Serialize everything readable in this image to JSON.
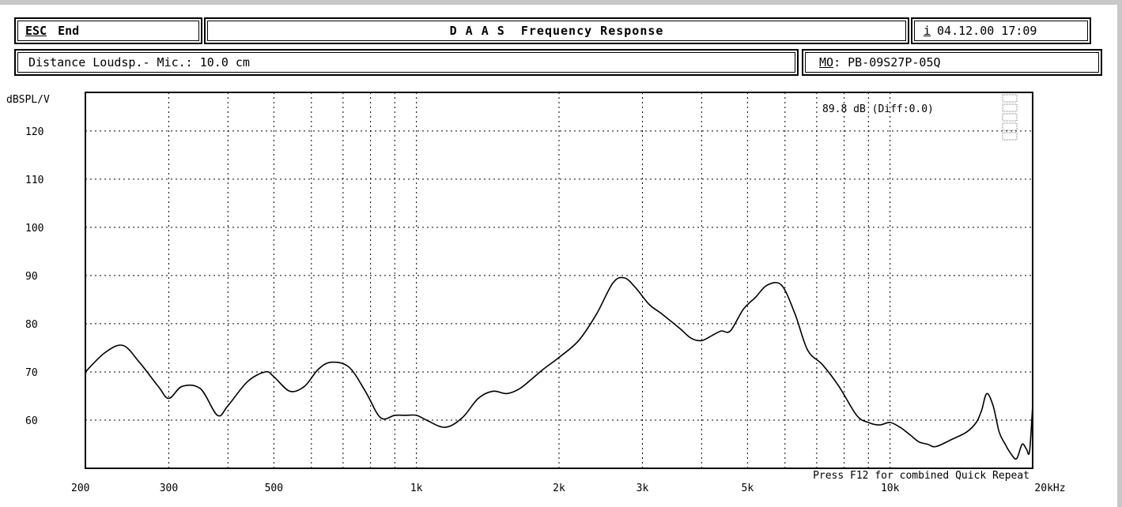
{
  "header": {
    "esc_key": "ESC",
    "esc_label": "End",
    "title": "D A A S  Frequency Response",
    "info_key": "i",
    "datetime": "04.12.00 17:09"
  },
  "subheader": {
    "distance": "Distance Loudsp.- Mic.: 10.0 cm",
    "model_key": "MO",
    "model_value": ": PB-09S27P-05Q"
  },
  "chart_data": {
    "type": "line",
    "ylabel": "dBSPL/V",
    "xunit": "kHz",
    "xscale": "log",
    "xlim": [
      200,
      20000
    ],
    "ylim": [
      50,
      128
    ],
    "grid": true,
    "y_ticks": [
      60,
      70,
      80,
      90,
      100,
      110,
      120
    ],
    "x_tick_labels": [
      {
        "f": 200,
        "label": "200"
      },
      {
        "f": 300,
        "label": "300"
      },
      {
        "f": 500,
        "label": "500"
      },
      {
        "f": 1000,
        "label": "1k"
      },
      {
        "f": 2000,
        "label": "2k"
      },
      {
        "f": 3000,
        "label": "3k"
      },
      {
        "f": 5000,
        "label": "5k"
      },
      {
        "f": 10000,
        "label": "10k"
      },
      {
        "f": 20000,
        "label": "20kHz"
      }
    ],
    "readout": "89.8 dB (Diff:0.0)",
    "annotation": "Press F12 for combined Quick Repeat",
    "x": [
      200,
      220,
      240,
      260,
      285,
      300,
      320,
      350,
      380,
      400,
      440,
      480,
      500,
      540,
      580,
      620,
      660,
      720,
      780,
      840,
      900,
      950,
      1000,
      1050,
      1150,
      1250,
      1350,
      1450,
      1550,
      1650,
      1750,
      1850,
      2000,
      2200,
      2400,
      2600,
      2750,
      2900,
      3100,
      3300,
      3600,
      3800,
      4000,
      4200,
      4400,
      4600,
      4900,
      5200,
      5500,
      5900,
      6300,
      6700,
      7200,
      7800,
      8500,
      9000,
      9500,
      10000,
      10500,
      11000,
      11500,
      12000,
      12500,
      13500,
      14500,
      15200,
      15600,
      16000,
      16500,
      17000,
      17500,
      18000,
      18500,
      19000,
      19400,
      19700,
      20000
    ],
    "y": [
      70,
      74,
      75.5,
      72,
      67,
      64.5,
      67,
      66.5,
      61,
      63,
      68,
      70,
      69,
      66,
      67,
      70.5,
      72,
      71,
      66,
      60.5,
      61,
      61,
      61,
      60,
      58.5,
      60.5,
      64.5,
      66,
      65.5,
      66.5,
      68.5,
      70.5,
      73,
      76.5,
      82,
      88.5,
      89.5,
      87.5,
      84,
      82,
      79,
      77,
      76.5,
      77.5,
      78.5,
      78.5,
      83,
      85.5,
      88,
      88,
      82,
      74.5,
      71.5,
      67,
      61,
      59.5,
      59,
      59.5,
      58.5,
      57,
      55.5,
      55,
      54.5,
      56,
      57.5,
      59.5,
      62,
      65.5,
      63,
      57.5,
      55,
      53,
      52,
      55,
      54,
      53.5,
      63
    ]
  }
}
